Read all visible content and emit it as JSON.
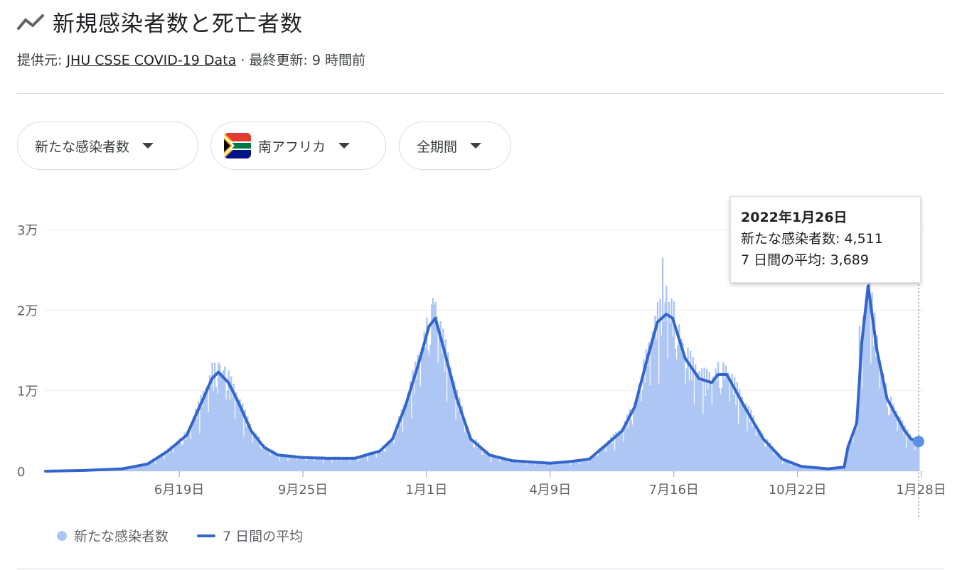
{
  "header": {
    "title": "新規感染者数と死亡者数",
    "icon": "trending-icon"
  },
  "source": {
    "prefix": "提供元:",
    "link": "JHU CSSE COVID-19 Data",
    "sep": "·",
    "updated": "最終更新: 9 時間前"
  },
  "filters": {
    "metric": "新たな感染者数",
    "country": "南アフリカ",
    "period": "全期間"
  },
  "colors": {
    "bar": "#aec6f4",
    "line": "#3366cc",
    "grid": "#ebebeb",
    "axis": "#5f6368"
  },
  "tooltip": {
    "date": "2022年1月26日",
    "row1_label": "新たな感染者数:",
    "row1_value": "4,511",
    "row2_label": "7 日間の平均:",
    "row2_value": "3,689"
  },
  "legend": {
    "bars": "新たな感染者数",
    "line": "7 日間の平均"
  },
  "chart_data": {
    "type": "bar",
    "title": "新規感染者数と死亡者数",
    "x_start": "2020-03-05",
    "x_end": "2022-01-26",
    "ylim": [
      0,
      30000
    ],
    "y_ticks": [
      {
        "value": 0,
        "label": "0"
      },
      {
        "value": 10000,
        "label": "1万"
      },
      {
        "value": 20000,
        "label": "2万"
      },
      {
        "value": 30000,
        "label": "3万"
      }
    ],
    "x_ticks": [
      {
        "date": "2020-06-19",
        "label": "6月19日"
      },
      {
        "date": "2020-09-25",
        "label": "9月25日"
      },
      {
        "date": "2021-01-01",
        "label": "1月1日"
      },
      {
        "date": "2021-04-09",
        "label": "4月9日"
      },
      {
        "date": "2021-07-16",
        "label": "7月16日"
      },
      {
        "date": "2021-10-22",
        "label": "10月22日"
      },
      {
        "date": "2022-01-28",
        "label": "1月28日"
      }
    ],
    "series": [
      {
        "name": "7 日間の平均",
        "kind": "line",
        "points": [
          [
            "2020-03-05",
            0
          ],
          [
            "2020-04-05",
            100
          ],
          [
            "2020-05-05",
            300
          ],
          [
            "2020-05-25",
            900
          ],
          [
            "2020-06-10",
            2500
          ],
          [
            "2020-06-25",
            4500
          ],
          [
            "2020-07-08",
            9000
          ],
          [
            "2020-07-15",
            11500
          ],
          [
            "2020-07-20",
            12300
          ],
          [
            "2020-07-28",
            11000
          ],
          [
            "2020-08-05",
            8500
          ],
          [
            "2020-08-15",
            5000
          ],
          [
            "2020-08-25",
            3000
          ],
          [
            "2020-09-05",
            2000
          ],
          [
            "2020-09-25",
            1700
          ],
          [
            "2020-10-15",
            1600
          ],
          [
            "2020-11-05",
            1600
          ],
          [
            "2020-11-25",
            2500
          ],
          [
            "2020-12-05",
            4000
          ],
          [
            "2020-12-15",
            8000
          ],
          [
            "2020-12-25",
            13000
          ],
          [
            "2021-01-03",
            18000
          ],
          [
            "2021-01-08",
            19000
          ],
          [
            "2021-01-15",
            15000
          ],
          [
            "2021-01-25",
            9000
          ],
          [
            "2021-02-05",
            4000
          ],
          [
            "2021-02-20",
            2000
          ],
          [
            "2021-03-10",
            1300
          ],
          [
            "2021-04-09",
            1000
          ],
          [
            "2021-04-25",
            1200
          ],
          [
            "2021-05-10",
            1500
          ],
          [
            "2021-05-25",
            3500
          ],
          [
            "2021-06-05",
            5000
          ],
          [
            "2021-06-15",
            8000
          ],
          [
            "2021-06-25",
            14000
          ],
          [
            "2021-07-03",
            18500
          ],
          [
            "2021-07-10",
            19500
          ],
          [
            "2021-07-15",
            19000
          ],
          [
            "2021-07-25",
            14000
          ],
          [
            "2021-08-05",
            11500
          ],
          [
            "2021-08-15",
            11000
          ],
          [
            "2021-08-20",
            12000
          ],
          [
            "2021-08-27",
            12000
          ],
          [
            "2021-09-10",
            8000
          ],
          [
            "2021-09-25",
            4000
          ],
          [
            "2021-10-10",
            1500
          ],
          [
            "2021-10-25",
            600
          ],
          [
            "2021-11-15",
            300
          ],
          [
            "2021-11-28",
            500
          ],
          [
            "2021-12-01",
            3000
          ],
          [
            "2021-12-08",
            6000
          ],
          [
            "2021-12-12",
            16000
          ],
          [
            "2021-12-17",
            23000
          ],
          [
            "2021-12-24",
            15000
          ],
          [
            "2022-01-01",
            9000
          ],
          [
            "2022-01-08",
            7000
          ],
          [
            "2022-01-15",
            5000
          ],
          [
            "2022-01-20",
            4000
          ],
          [
            "2022-01-26",
            3689
          ]
        ]
      },
      {
        "name": "新たな感染者数",
        "kind": "bars",
        "points": [
          [
            "2020-06-25",
            5000
          ],
          [
            "2020-07-15",
            13500
          ],
          [
            "2020-07-20",
            13500
          ],
          [
            "2020-07-25",
            13000
          ],
          [
            "2021-01-06",
            21500
          ],
          [
            "2021-01-08",
            21000
          ],
          [
            "2021-07-07",
            26500
          ],
          [
            "2021-07-10",
            23000
          ],
          [
            "2021-12-10",
            18000
          ],
          [
            "2021-12-18",
            23500
          ],
          [
            "2022-01-05",
            8000
          ],
          [
            "2022-01-26",
            4511
          ]
        ]
      }
    ],
    "highlight": {
      "date": "2022-01-26",
      "value": 3689
    }
  }
}
